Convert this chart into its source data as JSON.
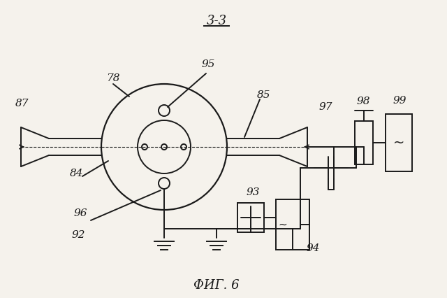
{
  "title": "3-3",
  "caption": "ФИГ. 6",
  "bg_color": "#f5f2ec",
  "line_color": "#1a1a1a",
  "title_fontsize": 13,
  "label_fontsize": 11,
  "caption_fontsize": 13
}
